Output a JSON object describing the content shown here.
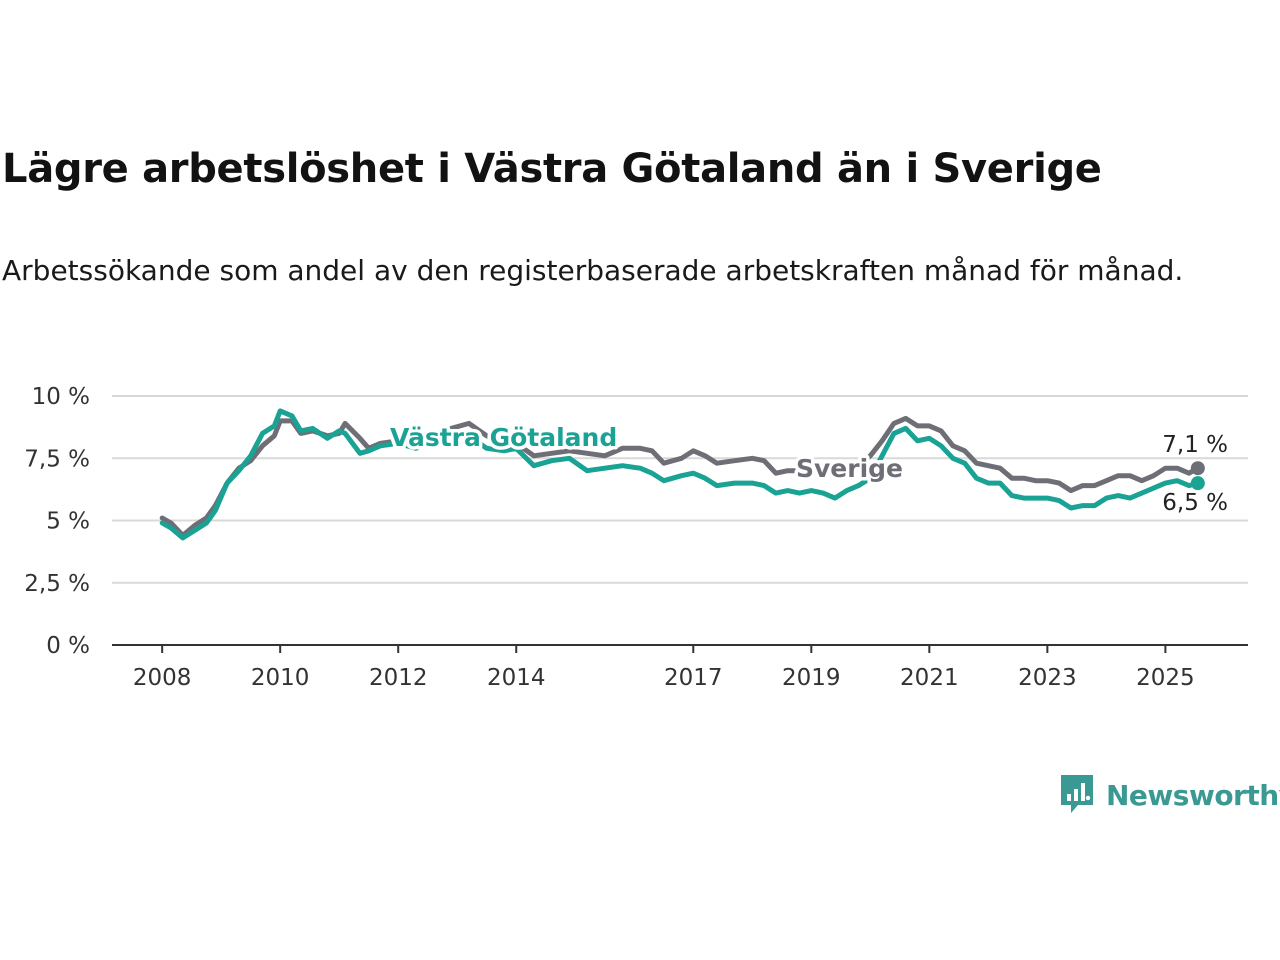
{
  "title": "Lägre arbetslöshet i Västra Götaland än i Sverige",
  "subtitle": "Arbetssökande som andel av den registerbaserade arbetskraften månad för månad.",
  "brand": {
    "name": "Newsworthy",
    "icon": "newsworthy-logo-icon",
    "color": "#3a9a93"
  },
  "chart_data": {
    "type": "line",
    "ylim": [
      0,
      10
    ],
    "yticks": [
      0,
      2.5,
      5,
      7.5,
      10
    ],
    "ytick_labels": [
      "0 %",
      "2,5 %",
      "5 %",
      "7,5 %",
      "10 %"
    ],
    "xticks": [
      2008,
      2010,
      2012,
      2014,
      2017,
      2019,
      2021,
      2023,
      2025
    ],
    "xtick_labels": [
      "2008",
      "2010",
      "2012",
      "2014",
      "2017",
      "2019",
      "2021",
      "2023",
      "2025"
    ],
    "xlim": [
      2007.15,
      2026.4
    ],
    "grid": true,
    "series": [
      {
        "name": "Sverige",
        "color": "#6e6e76",
        "end_label": "7,1 %",
        "points": [
          [
            2008.0,
            5.1
          ],
          [
            2008.15,
            4.9
          ],
          [
            2008.35,
            4.4
          ],
          [
            2008.55,
            4.8
          ],
          [
            2008.75,
            5.1
          ],
          [
            2008.9,
            5.6
          ],
          [
            2009.1,
            6.5
          ],
          [
            2009.3,
            7.1
          ],
          [
            2009.5,
            7.4
          ],
          [
            2009.7,
            8.0
          ],
          [
            2009.9,
            8.4
          ],
          [
            2010.0,
            9.0
          ],
          [
            2010.2,
            9.0
          ],
          [
            2010.35,
            8.5
          ],
          [
            2010.55,
            8.6
          ],
          [
            2010.8,
            8.4
          ],
          [
            2011.0,
            8.5
          ],
          [
            2011.1,
            8.9
          ],
          [
            2011.35,
            8.3
          ],
          [
            2011.5,
            7.9
          ],
          [
            2011.7,
            8.1
          ],
          [
            2012.0,
            8.2
          ],
          [
            2012.3,
            8.0
          ],
          [
            2012.6,
            8.3
          ],
          [
            2012.9,
            8.7
          ],
          [
            2013.2,
            8.9
          ],
          [
            2013.5,
            8.4
          ],
          [
            2013.8,
            8.2
          ],
          [
            2014.0,
            8.1
          ],
          [
            2014.3,
            7.6
          ],
          [
            2014.6,
            7.7
          ],
          [
            2014.9,
            7.8
          ],
          [
            2015.2,
            7.7
          ],
          [
            2015.5,
            7.6
          ],
          [
            2015.8,
            7.9
          ],
          [
            2016.1,
            7.9
          ],
          [
            2016.3,
            7.8
          ],
          [
            2016.5,
            7.3
          ],
          [
            2016.8,
            7.5
          ],
          [
            2017.0,
            7.8
          ],
          [
            2017.2,
            7.6
          ],
          [
            2017.4,
            7.3
          ],
          [
            2017.7,
            7.4
          ],
          [
            2018.0,
            7.5
          ],
          [
            2018.2,
            7.4
          ],
          [
            2018.4,
            6.9
          ],
          [
            2018.6,
            7.0
          ],
          [
            2018.8,
            7.0
          ],
          [
            2019.0,
            7.0
          ],
          [
            2019.2,
            7.0
          ],
          [
            2019.4,
            6.9
          ],
          [
            2019.6,
            7.1
          ],
          [
            2019.8,
            7.2
          ],
          [
            2020.0,
            7.6
          ],
          [
            2020.2,
            8.2
          ],
          [
            2020.4,
            8.9
          ],
          [
            2020.6,
            9.1
          ],
          [
            2020.8,
            8.8
          ],
          [
            2021.0,
            8.8
          ],
          [
            2021.2,
            8.6
          ],
          [
            2021.4,
            8.0
          ],
          [
            2021.6,
            7.8
          ],
          [
            2021.8,
            7.3
          ],
          [
            2022.0,
            7.2
          ],
          [
            2022.2,
            7.1
          ],
          [
            2022.4,
            6.7
          ],
          [
            2022.6,
            6.7
          ],
          [
            2022.8,
            6.6
          ],
          [
            2023.0,
            6.6
          ],
          [
            2023.2,
            6.5
          ],
          [
            2023.4,
            6.2
          ],
          [
            2023.6,
            6.4
          ],
          [
            2023.8,
            6.4
          ],
          [
            2024.0,
            6.6
          ],
          [
            2024.2,
            6.8
          ],
          [
            2024.4,
            6.8
          ],
          [
            2024.6,
            6.6
          ],
          [
            2024.8,
            6.8
          ],
          [
            2025.0,
            7.1
          ],
          [
            2025.2,
            7.1
          ],
          [
            2025.4,
            6.9
          ],
          [
            2025.55,
            7.1
          ]
        ]
      },
      {
        "name": "Västra Götaland",
        "color": "#1aa394",
        "end_label": "6,5 %",
        "points": [
          [
            2008.0,
            4.9
          ],
          [
            2008.15,
            4.7
          ],
          [
            2008.35,
            4.3
          ],
          [
            2008.55,
            4.6
          ],
          [
            2008.75,
            4.9
          ],
          [
            2008.9,
            5.4
          ],
          [
            2009.1,
            6.5
          ],
          [
            2009.3,
            7.0
          ],
          [
            2009.5,
            7.6
          ],
          [
            2009.7,
            8.5
          ],
          [
            2009.9,
            8.8
          ],
          [
            2010.0,
            9.4
          ],
          [
            2010.2,
            9.2
          ],
          [
            2010.35,
            8.6
          ],
          [
            2010.55,
            8.7
          ],
          [
            2010.8,
            8.3
          ],
          [
            2011.0,
            8.6
          ],
          [
            2011.1,
            8.5
          ],
          [
            2011.35,
            7.7
          ],
          [
            2011.5,
            7.8
          ],
          [
            2011.7,
            8.0
          ],
          [
            2012.0,
            8.1
          ],
          [
            2012.3,
            7.9
          ],
          [
            2012.6,
            8.2
          ],
          [
            2012.9,
            8.6
          ],
          [
            2013.2,
            8.4
          ],
          [
            2013.5,
            7.9
          ],
          [
            2013.8,
            7.8
          ],
          [
            2014.0,
            7.9
          ],
          [
            2014.3,
            7.2
          ],
          [
            2014.6,
            7.4
          ],
          [
            2014.9,
            7.5
          ],
          [
            2015.2,
            7.0
          ],
          [
            2015.5,
            7.1
          ],
          [
            2015.8,
            7.2
          ],
          [
            2016.1,
            7.1
          ],
          [
            2016.3,
            6.9
          ],
          [
            2016.5,
            6.6
          ],
          [
            2016.8,
            6.8
          ],
          [
            2017.0,
            6.9
          ],
          [
            2017.2,
            6.7
          ],
          [
            2017.4,
            6.4
          ],
          [
            2017.7,
            6.5
          ],
          [
            2018.0,
            6.5
          ],
          [
            2018.2,
            6.4
          ],
          [
            2018.4,
            6.1
          ],
          [
            2018.6,
            6.2
          ],
          [
            2018.8,
            6.1
          ],
          [
            2019.0,
            6.2
          ],
          [
            2019.2,
            6.1
          ],
          [
            2019.4,
            5.9
          ],
          [
            2019.6,
            6.2
          ],
          [
            2019.8,
            6.4
          ],
          [
            2020.0,
            6.7
          ],
          [
            2020.2,
            7.6
          ],
          [
            2020.4,
            8.5
          ],
          [
            2020.6,
            8.7
          ],
          [
            2020.8,
            8.2
          ],
          [
            2021.0,
            8.3
          ],
          [
            2021.2,
            8.0
          ],
          [
            2021.4,
            7.5
          ],
          [
            2021.6,
            7.3
          ],
          [
            2021.8,
            6.7
          ],
          [
            2022.0,
            6.5
          ],
          [
            2022.2,
            6.5
          ],
          [
            2022.4,
            6.0
          ],
          [
            2022.6,
            5.9
          ],
          [
            2022.8,
            5.9
          ],
          [
            2023.0,
            5.9
          ],
          [
            2023.2,
            5.8
          ],
          [
            2023.4,
            5.5
          ],
          [
            2023.6,
            5.6
          ],
          [
            2023.8,
            5.6
          ],
          [
            2024.0,
            5.9
          ],
          [
            2024.2,
            6.0
          ],
          [
            2024.4,
            5.9
          ],
          [
            2024.6,
            6.1
          ],
          [
            2024.8,
            6.3
          ],
          [
            2025.0,
            6.5
          ],
          [
            2025.2,
            6.6
          ],
          [
            2025.4,
            6.4
          ],
          [
            2025.55,
            6.5
          ]
        ]
      }
    ]
  }
}
